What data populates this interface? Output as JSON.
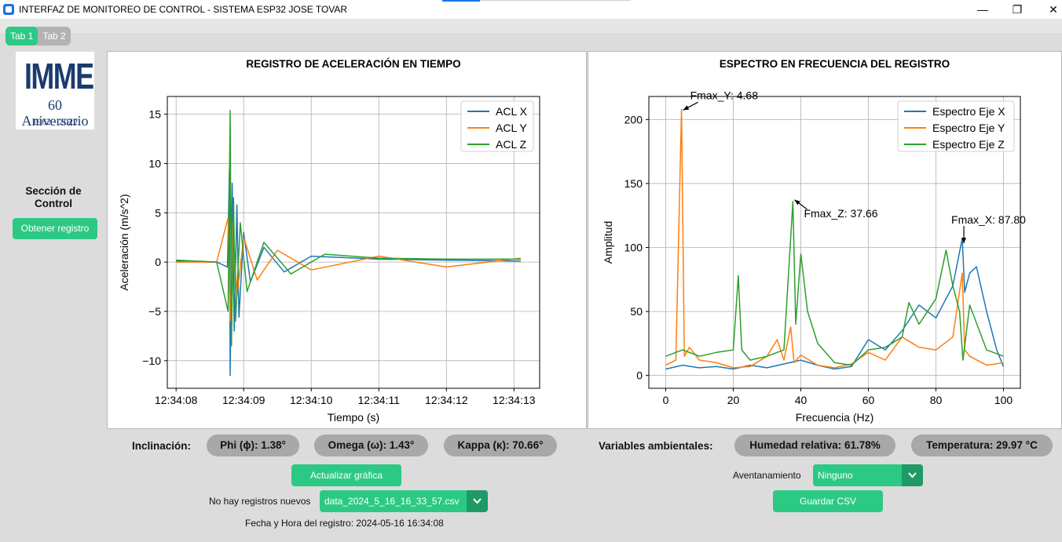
{
  "window": {
    "title": "INTERFAZ DE MONITOREO DE CONTROL - SISTEMA ESP32 JOSE TOVAR",
    "controls": {
      "minimize": "—",
      "maximize": "❐",
      "close": "✕"
    }
  },
  "tabs": [
    {
      "label": "Tab 1",
      "active": true
    },
    {
      "label": "Tab 2",
      "active": false
    }
  ],
  "logo": {
    "main": "IMME",
    "sub": "60 Aniversario",
    "years": "1962 - 2022"
  },
  "control": {
    "title": "Sección de Control",
    "get_button": "Obtener registro"
  },
  "time_chart": {
    "title": "REGISTRO DE ACELERACIÓN EN TIEMPO",
    "xlabel": "Tiempo (s)",
    "ylabel": "Aceleración (m/s^2)"
  },
  "freq_chart": {
    "title": "ESPECTRO EN FRECUENCIA DEL REGISTRO",
    "xlabel": "Frecuencia (Hz)",
    "ylabel": "Amplitud"
  },
  "chart_data": [
    {
      "type": "line",
      "title": "REGISTRO DE ACELERACIÓN EN TIEMPO",
      "xlabel": "Tiempo (s)",
      "ylabel": "Aceleración (m/s^2)",
      "x_ticks": [
        "12:34:08",
        "12:34:09",
        "12:34:10",
        "12:34:11",
        "12:34:12",
        "12:34:13"
      ],
      "xlim": [
        "12:34:07.87",
        "12:34:13.38"
      ],
      "ylim": [
        -12.8,
        16.8
      ],
      "y_ticks": [
        -10,
        -5,
        0,
        5,
        10,
        15
      ],
      "grid": true,
      "legend": "top-right",
      "series": [
        {
          "name": "ACL X",
          "color": "#1f77b4",
          "points": [
            [
              "12:34:08.00",
              0.1
            ],
            [
              "12:34:08.60",
              0.0
            ],
            [
              "12:34:08.76",
              -0.5
            ],
            [
              "12:34:08.79",
              9.5
            ],
            [
              "12:34:08.80",
              -11.5
            ],
            [
              "12:34:08.83",
              8.0
            ],
            [
              "12:34:08.86",
              -7.0
            ],
            [
              "12:34:08.90",
              5.8
            ],
            [
              "12:34:08.93",
              -5.6
            ],
            [
              "12:34:09.00",
              3.0
            ],
            [
              "12:34:09.10",
              -2.0
            ],
            [
              "12:34:09.30",
              1.5
            ],
            [
              "12:34:09.60",
              -1.0
            ],
            [
              "12:34:10.00",
              0.6
            ],
            [
              "12:34:11.00",
              0.3
            ],
            [
              "12:34:12.00",
              0.2
            ],
            [
              "12:34:13.10",
              0.1
            ]
          ]
        },
        {
          "name": "ACL Y",
          "color": "#ff7f0e",
          "points": [
            [
              "12:34:08.00",
              0.0
            ],
            [
              "12:34:08.60",
              0.0
            ],
            [
              "12:34:08.77",
              4.5
            ],
            [
              "12:34:08.80",
              -6.0
            ],
            [
              "12:34:08.84",
              4.0
            ],
            [
              "12:34:08.90",
              -3.5
            ],
            [
              "12:34:09.00",
              2.5
            ],
            [
              "12:34:09.20",
              -1.8
            ],
            [
              "12:34:09.50",
              1.2
            ],
            [
              "12:34:10.00",
              -0.8
            ],
            [
              "12:34:11.00",
              0.6
            ],
            [
              "12:34:12.00",
              -0.5
            ],
            [
              "12:34:13.10",
              0.4
            ]
          ]
        },
        {
          "name": "ACL Z",
          "color": "#2ca02c",
          "points": [
            [
              "12:34:08.00",
              0.2
            ],
            [
              "12:34:08.60",
              0.0
            ],
            [
              "12:34:08.77",
              -5.0
            ],
            [
              "12:34:08.80",
              15.4
            ],
            [
              "12:34:08.82",
              -8.5
            ],
            [
              "12:34:08.85",
              6.5
            ],
            [
              "12:34:08.88",
              -6.0
            ],
            [
              "12:34:08.95",
              4.0
            ],
            [
              "12:34:09.05",
              -3.0
            ],
            [
              "12:34:09.30",
              2.0
            ],
            [
              "12:34:09.70",
              -1.2
            ],
            [
              "12:34:10.20",
              0.8
            ],
            [
              "12:34:11.00",
              0.4
            ],
            [
              "12:34:12.00",
              0.3
            ],
            [
              "12:34:13.10",
              0.3
            ]
          ]
        }
      ]
    },
    {
      "type": "line",
      "title": "ESPECTRO EN FRECUENCIA DEL REGISTRO",
      "xlabel": "Frecuencia (Hz)",
      "ylabel": "Amplitud",
      "xlim": [
        -5,
        105
      ],
      "ylim": [
        -10,
        218
      ],
      "x_ticks": [
        0,
        20,
        40,
        60,
        80,
        100
      ],
      "y_ticks": [
        0,
        50,
        100,
        150,
        200
      ],
      "grid": true,
      "legend": "top-right",
      "series": [
        {
          "name": "Espectro Eje X",
          "color": "#1f77b4",
          "points": [
            [
              0,
              5
            ],
            [
              5,
              8
            ],
            [
              10,
              6
            ],
            [
              15,
              7
            ],
            [
              20,
              5
            ],
            [
              25,
              8
            ],
            [
              30,
              6
            ],
            [
              35,
              9
            ],
            [
              40,
              12
            ],
            [
              45,
              8
            ],
            [
              50,
              5
            ],
            [
              55,
              7
            ],
            [
              60,
              28
            ],
            [
              65,
              20
            ],
            [
              70,
              35
            ],
            [
              75,
              55
            ],
            [
              80,
              45
            ],
            [
              85,
              70
            ],
            [
              87.8,
              107
            ],
            [
              88.5,
              65
            ],
            [
              90,
              80
            ],
            [
              92,
              85
            ],
            [
              95,
              50
            ],
            [
              98,
              20
            ],
            [
              100,
              7
            ]
          ]
        },
        {
          "name": "Espectro Eje Y",
          "color": "#ff7f0e",
          "points": [
            [
              0,
              8
            ],
            [
              3,
              12
            ],
            [
              4.68,
              208
            ],
            [
              5.5,
              15
            ],
            [
              7,
              22
            ],
            [
              10,
              12
            ],
            [
              15,
              10
            ],
            [
              20,
              6
            ],
            [
              25,
              7
            ],
            [
              30,
              15
            ],
            [
              33,
              28
            ],
            [
              35,
              12
            ],
            [
              37,
              38
            ],
            [
              38,
              10
            ],
            [
              40,
              16
            ],
            [
              45,
              8
            ],
            [
              50,
              6
            ],
            [
              55,
              9
            ],
            [
              60,
              18
            ],
            [
              65,
              12
            ],
            [
              70,
              30
            ],
            [
              75,
              22
            ],
            [
              80,
              20
            ],
            [
              85,
              30
            ],
            [
              87.8,
              80
            ],
            [
              88.5,
              20
            ],
            [
              90,
              15
            ],
            [
              95,
              8
            ],
            [
              100,
              10
            ]
          ]
        },
        {
          "name": "Espectro Eje Z",
          "color": "#2ca02c",
          "points": [
            [
              0,
              15
            ],
            [
              5,
              20
            ],
            [
              10,
              15
            ],
            [
              15,
              18
            ],
            [
              20,
              20
            ],
            [
              21.5,
              78
            ],
            [
              22.5,
              20
            ],
            [
              25,
              12
            ],
            [
              30,
              15
            ],
            [
              35,
              20
            ],
            [
              37.66,
              136
            ],
            [
              38.5,
              40
            ],
            [
              40,
              95
            ],
            [
              42,
              50
            ],
            [
              45,
              25
            ],
            [
              50,
              10
            ],
            [
              55,
              8
            ],
            [
              60,
              20
            ],
            [
              65,
              22
            ],
            [
              70,
              30
            ],
            [
              72,
              57
            ],
            [
              75,
              40
            ],
            [
              80,
              60
            ],
            [
              83,
              98
            ],
            [
              85,
              70
            ],
            [
              87,
              50
            ],
            [
              88,
              12
            ],
            [
              90,
              55
            ],
            [
              95,
              20
            ],
            [
              100,
              15
            ]
          ]
        }
      ],
      "annotations": [
        {
          "text": "Fmax_Y: 4.68",
          "x": 4.68,
          "y": 208
        },
        {
          "text": "Fmax_Z: 37.66",
          "x": 37.66,
          "y": 136
        },
        {
          "text": "Fmax_X: 87.80",
          "x": 87.8,
          "y": 107
        }
      ]
    }
  ],
  "inclination": {
    "label": "Inclinación:",
    "phi": "Phi (ϕ): 1.38°",
    "omega": "Omega (ω): 1.43°",
    "kappa": "Kappa (κ): 70.66°"
  },
  "env": {
    "label": "Variables ambientales:",
    "humidity": "Humedad relativa: 61.78%",
    "temperature": "Temperatura: 29.97 °C"
  },
  "actions": {
    "update_button": "Actualizar gráfica",
    "no_records": "No hay registros nuevos",
    "file_selected": "data_2024_5_16_16_33_57.csv",
    "record_datetime": "Fecha y Hora del registro: 2024-05-16 16:34:08",
    "window_label": "Aventanamiento",
    "window_selected": "Ninguno",
    "save_button": "Guardar CSV"
  }
}
